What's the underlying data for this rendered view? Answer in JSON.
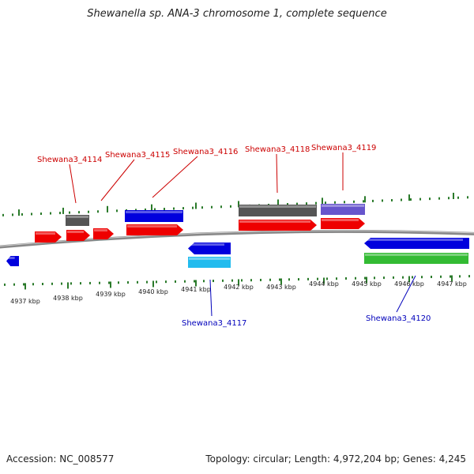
{
  "title": "Shewanella sp. ANA-3 chromosome 1, complete sequence",
  "footer": {
    "accession": "Accession: NC_008577",
    "summary": "Topology: circular; Length: 4,972,204 bp; Genes: 4,245"
  },
  "colors": {
    "red": "#ee0000",
    "blue": "#0000dd",
    "cyan": "#22bbee",
    "gray": "#555555",
    "purple": "#6655cc",
    "green": "#33bb33",
    "tick": "#2a7a2a",
    "backbone": "#888888",
    "label_red": "#cc0000",
    "label_blue": "#0000bb"
  },
  "ruler": {
    "labels": [
      "4937 kbp",
      "4938 kbp",
      "4939 kbp",
      "4940 kbp",
      "4941 kbp",
      "4942 kbp",
      "4943 kbp",
      "4944 kbp",
      "4945 kbp",
      "4946 kbp",
      "4947 kbp"
    ]
  },
  "genes": [
    {
      "label": "Shewana3_4114",
      "color": "label_red"
    },
    {
      "label": "Shewana3_4115",
      "color": "label_red"
    },
    {
      "label": "Shewana3_4116",
      "color": "label_red"
    },
    {
      "label": "Shewana3_4118",
      "color": "label_red"
    },
    {
      "label": "Shewana3_4119",
      "color": "label_red"
    },
    {
      "label": "Shewana3_4117",
      "color": "label_blue"
    },
    {
      "label": "Shewana3_4120",
      "color": "label_blue"
    }
  ]
}
